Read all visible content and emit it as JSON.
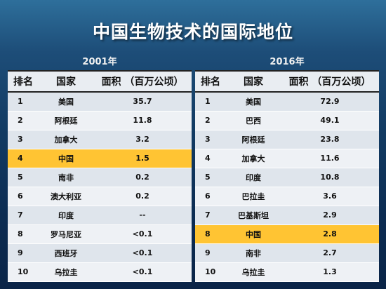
{
  "title": "中国生物技术的国际地位",
  "headers": {
    "rank": "排名",
    "country": "国家",
    "area": "面积 （百万公顷）"
  },
  "highlight_color": "#ffc433",
  "tables": [
    {
      "year": "2001年",
      "rows": [
        {
          "rank": "1",
          "country": "美国",
          "area": "35.7",
          "highlight": false
        },
        {
          "rank": "2",
          "country": "阿根廷",
          "area": "11.8",
          "highlight": false
        },
        {
          "rank": "3",
          "country": "加拿大",
          "area": "3.2",
          "highlight": false
        },
        {
          "rank": "4",
          "country": "中国",
          "area": "1.5",
          "highlight": true
        },
        {
          "rank": "5",
          "country": "南非",
          "area": "0.2",
          "highlight": false
        },
        {
          "rank": "6",
          "country": "澳大利亚",
          "area": "0.2",
          "highlight": false
        },
        {
          "rank": "7",
          "country": "印度",
          "area": "--",
          "highlight": false
        },
        {
          "rank": "8",
          "country": "罗马尼亚",
          "area": "<0.1",
          "highlight": false
        },
        {
          "rank": "9",
          "country": "西班牙",
          "area": "<0.1",
          "highlight": false
        },
        {
          "rank": "10",
          "country": "乌拉圭",
          "area": "<0.1",
          "highlight": false
        }
      ]
    },
    {
      "year": "2016年",
      "rows": [
        {
          "rank": "1",
          "country": "美国",
          "area": "72.9",
          "highlight": false
        },
        {
          "rank": "2",
          "country": "巴西",
          "area": "49.1",
          "highlight": false
        },
        {
          "rank": "3",
          "country": "阿根廷",
          "area": "23.8",
          "highlight": false
        },
        {
          "rank": "4",
          "country": "加拿大",
          "area": "11.6",
          "highlight": false
        },
        {
          "rank": "5",
          "country": "印度",
          "area": "10.8",
          "highlight": false
        },
        {
          "rank": "6",
          "country": "巴拉圭",
          "area": "3.6",
          "highlight": false
        },
        {
          "rank": "7",
          "country": "巴基斯坦",
          "area": "2.9",
          "highlight": false
        },
        {
          "rank": "8",
          "country": "中国",
          "area": "2.8",
          "highlight": true
        },
        {
          "rank": "9",
          "country": "南非",
          "area": "2.7",
          "highlight": false
        },
        {
          "rank": "10",
          "country": "乌拉圭",
          "area": "1.3",
          "highlight": false
        }
      ]
    }
  ]
}
